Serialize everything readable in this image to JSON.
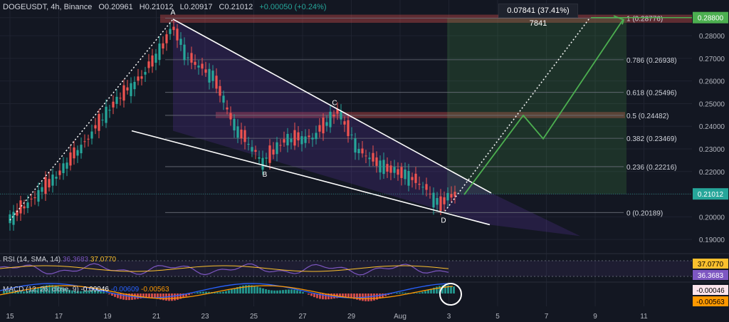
{
  "header": {
    "symbol": "DOGEUSDT, 4h, Binance",
    "o": "O0.20961",
    "h": "H0.21012",
    "l": "L0.20917",
    "c": "C0.21012",
    "chg": "+0.00050 (+0.24%)"
  },
  "measure_label": "0.07841 (37.41%) 7841",
  "rsi": {
    "label": "RSI (14, SMA, 14)",
    "v1": "36.3683",
    "v2": "37.0770",
    "badge1": "37.0770",
    "badge2": "36.3683"
  },
  "macd": {
    "label": "MACD (12, 26, close, 9)",
    "v1": "-0.00046",
    "v2": "-0.00609",
    "v3": "-0.00563",
    "badge1": "-0.00046",
    "badge2": "-0.00563"
  },
  "colors": {
    "bg": "#131722",
    "up": "#26a69a",
    "down": "#ef5350",
    "green_line": "#4caf50",
    "purple": "#7e57c2",
    "orange": "#ff9800",
    "blue": "#2962ff"
  },
  "chart_data": {
    "type": "candlestick",
    "y_axis": {
      "ticks": [
        "0.28800",
        "0.28000",
        "0.27000",
        "0.26000",
        "0.25000",
        "0.24000",
        "0.23000",
        "0.22000",
        "0.21000",
        "0.20000",
        "0.19000"
      ],
      "ylim": [
        0.185,
        0.292
      ]
    },
    "x_axis": {
      "ticks": [
        "15",
        "17",
        "19",
        "21",
        "23",
        "25",
        "27",
        "29",
        "Aug",
        "3",
        "5",
        "7",
        "9",
        "11"
      ]
    },
    "price_badges": [
      {
        "label": "0.28800",
        "value": 0.288
      },
      {
        "label": "0.21012",
        "value": 0.21012
      }
    ],
    "pattern_points": [
      {
        "label": "A",
        "value": 0.2875
      },
      {
        "label": "B",
        "value": 0.2215
      },
      {
        "label": "C",
        "value": 0.2475
      },
      {
        "label": "D",
        "value": 0.2018
      }
    ],
    "fib_levels": [
      {
        "label": "1 (0.28776)",
        "value": 0.28776
      },
      {
        "label": "0.786 (0.26938)",
        "value": 0.26938
      },
      {
        "label": "0.618 (0.25496)",
        "value": 0.25496
      },
      {
        "label": "0.5 (0.24482)",
        "value": 0.24482
      },
      {
        "label": "0.382 (0.23469)",
        "value": 0.23469
      },
      {
        "label": "0.236 (0.22216)",
        "value": 0.22216
      },
      {
        "label": "0 (0.20189)",
        "value": 0.20189
      }
    ]
  }
}
